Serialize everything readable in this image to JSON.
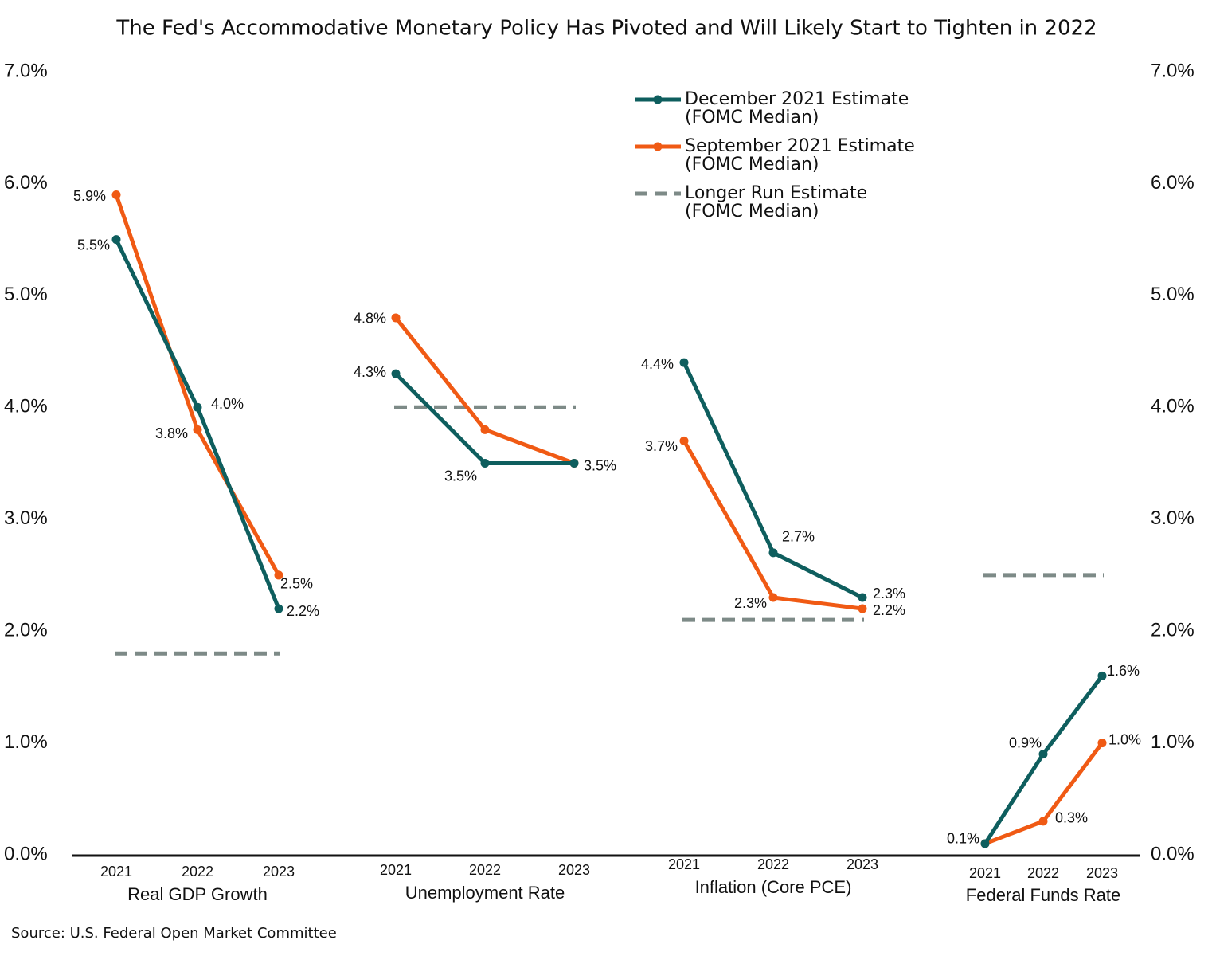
{
  "chart_data": {
    "type": "line",
    "title": "The Fed's Accommodative Monetary Policy Has Pivoted and Will Likely Start to Tighten in 2022",
    "source": "Source: U.S. Federal Open Market Committee",
    "groups": [
      "Real GDP Growth",
      "Unemployment Rate",
      "Inflation (Core PCE)",
      "Federal Funds Rate"
    ],
    "categories": [
      "2021",
      "2022",
      "2023",
      "2021",
      "2022",
      "2023",
      "2021",
      "2022",
      "2023",
      "2021",
      "2022",
      "2023"
    ],
    "series": [
      {
        "name": "December 2021 Estimate (FOMC Median)",
        "color": "#0e5e5e",
        "values": [
          5.5,
          4.0,
          2.2,
          4.3,
          3.5,
          3.5,
          4.4,
          2.7,
          2.3,
          0.1,
          0.9,
          1.6
        ],
        "value_labels": [
          "5.5%",
          "4.0%",
          "2.2%",
          "4.3%",
          "3.5%",
          null,
          "4.4%",
          "2.7%",
          "2.3%",
          "0.1%",
          "0.9%",
          "1.6%"
        ]
      },
      {
        "name": "September 2021 Estimate (FOMC Median)",
        "color": "#f05a14",
        "values": [
          5.9,
          3.8,
          2.5,
          4.8,
          3.8,
          3.5,
          3.7,
          2.3,
          2.2,
          0.1,
          0.3,
          1.0
        ],
        "value_labels": [
          "5.9%",
          "3.8%",
          "2.5%",
          "4.8%",
          null,
          "3.5%",
          "3.7%",
          "2.3%",
          "2.2%",
          null,
          "0.3%",
          "1.0%"
        ]
      }
    ],
    "longer_run": {
      "name": "Longer Run Estimate (FOMC Median)",
      "color": "#7d8a87",
      "values": [
        1.8,
        4.0,
        2.1,
        2.5
      ]
    },
    "ylim": [
      0,
      7
    ],
    "yticks": [
      {
        "value": 0,
        "label": "0.0%"
      },
      {
        "value": 1,
        "label": "1.0%"
      },
      {
        "value": 2,
        "label": "2.0%"
      },
      {
        "value": 3,
        "label": "3.0%"
      },
      {
        "value": 4,
        "label": "4.0%"
      },
      {
        "value": 5,
        "label": "5.0%"
      },
      {
        "value": 6,
        "label": "6.0%"
      },
      {
        "value": 7,
        "label": "7.0%"
      }
    ],
    "legend": "top-right"
  }
}
